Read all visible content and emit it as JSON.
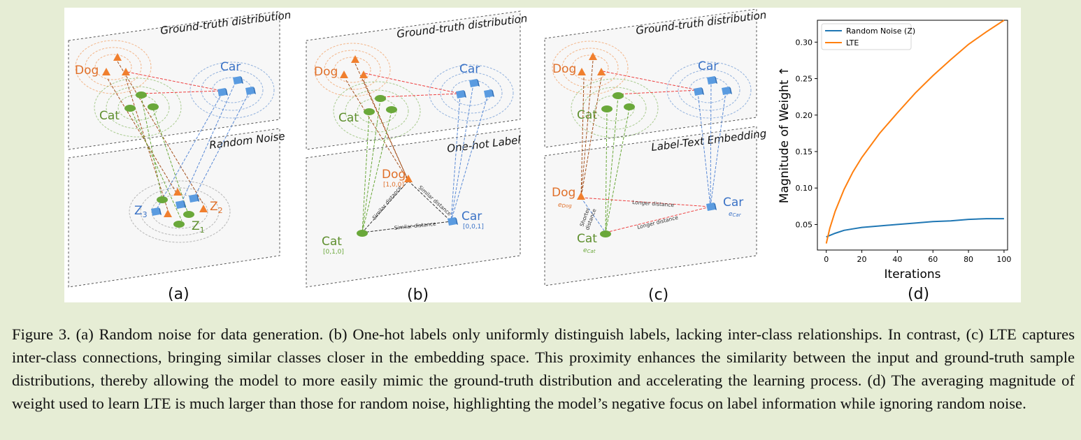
{
  "panel_a": {
    "plane_top_title": "Ground-truth distribution",
    "plane_bottom_title": "Random Noise",
    "label_dog": "Dog",
    "label_cat": "Cat",
    "label_car": "Car",
    "z1": "Z",
    "z1_sub": "1",
    "z2": "Z",
    "z2_sub": "2",
    "z3": "Z",
    "z3_sub": "3",
    "sub_label": "(a)"
  },
  "panel_b": {
    "plane_top_title": "Ground-truth distribution",
    "plane_bottom_title": "One-hot Label",
    "label_dog": "Dog",
    "label_cat": "Cat",
    "label_car": "Car",
    "vec_dog": "[1,0,0]",
    "vec_cat": "[0,1,0]",
    "vec_car": "[0,0,1]",
    "dist_dog_cat": "Similar distance",
    "dist_dog_car": "Similar distance",
    "dist_cat_car": "Similar distance",
    "sub_label": "(b)"
  },
  "panel_c": {
    "plane_top_title": "Ground-truth distribution",
    "plane_bottom_title": "Label-Text Embedding",
    "label_dog": "Dog",
    "label_cat": "Cat",
    "label_car": "Car",
    "e_dog": "e",
    "e_dog_sub": "Dog",
    "e_cat": "e",
    "e_cat_sub": "Cat",
    "e_car": "e",
    "e_car_sub": "Car",
    "dist_dog_car": "Longer distance",
    "dist_cat_car": "Longer distance",
    "dist_dog_cat_line1": "Shorter",
    "dist_dog_cat_line2": "distance",
    "sub_label": "(c)"
  },
  "panel_d": {
    "sub_label": "(d)"
  },
  "chart_data": {
    "type": "line",
    "xlabel": "Iterations",
    "ylabel": "Magnitude of Weight ↑",
    "xlim": [
      -5,
      102
    ],
    "ylim": [
      0.015,
      0.33
    ],
    "xticks": [
      0,
      20,
      40,
      60,
      80,
      100
    ],
    "yticks": [
      0.05,
      0.1,
      0.15,
      0.2,
      0.25,
      0.3
    ],
    "ytick_labels": [
      "0.05",
      "0.10",
      "0.15",
      "0.20",
      "0.25",
      "0.30"
    ],
    "legend_position": "upper-left",
    "grid": false,
    "series": [
      {
        "name": "Random Noise (Z)",
        "color": "#1f77b4",
        "x": [
          0,
          2,
          5,
          10,
          15,
          20,
          30,
          40,
          50,
          60,
          70,
          80,
          90,
          100
        ],
        "y": [
          0.033,
          0.035,
          0.038,
          0.042,
          0.044,
          0.046,
          0.048,
          0.05,
          0.052,
          0.054,
          0.055,
          0.057,
          0.058,
          0.058
        ]
      },
      {
        "name": "LTE",
        "color": "#ff7f0e",
        "x": [
          0,
          2,
          5,
          10,
          15,
          20,
          30,
          40,
          50,
          60,
          70,
          80,
          90,
          100
        ],
        "y": [
          0.024,
          0.045,
          0.068,
          0.098,
          0.122,
          0.142,
          0.175,
          0.203,
          0.23,
          0.254,
          0.276,
          0.297,
          0.314,
          0.33
        ]
      }
    ]
  },
  "caption": {
    "text": "Figure 3. (a) Random noise for data generation. (b) One-hot labels only uniformly distinguish labels, lacking inter-class relationships. In contrast, (c) LTE captures inter-class connections, bringing similar classes closer in the embedding space. This proximity enhances the similarity between the input and ground-truth sample distributions, thereby allowing the model to more easily mimic the ground-truth distribution and accelerating the learning process. (d) The averaging magnitude of weight used to learn LTE is much larger than those for random noise, highlighting the model’s negative focus on label information while ignoring random noise."
  }
}
